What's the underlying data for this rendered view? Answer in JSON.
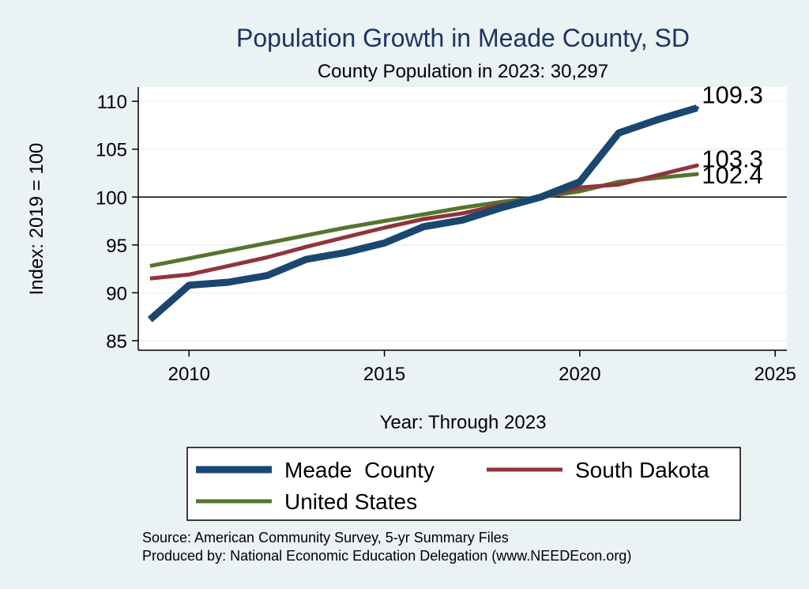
{
  "chart_data": {
    "type": "line",
    "title": "Population Growth in Meade County, SD",
    "subtitle": "County Population in 2023: 30,297",
    "xlabel": "Year: Through 2023",
    "ylabel": "Index: 2019 = 100",
    "xlim": [
      2008.7,
      2025.3
    ],
    "ylim": [
      84,
      111.5
    ],
    "x_ticks": [
      2010,
      2015,
      2020,
      2025
    ],
    "y_ticks": [
      85,
      90,
      95,
      100,
      105,
      110
    ],
    "reference_line": 100,
    "grid": true,
    "legend_position": "bottom",
    "x": [
      2009,
      2010,
      2011,
      2012,
      2013,
      2014,
      2015,
      2016,
      2017,
      2018,
      2019,
      2020,
      2021,
      2022,
      2023
    ],
    "series": [
      {
        "name": "Meade  County",
        "color": "#1a476f",
        "values": [
          87.2,
          90.8,
          91.1,
          91.8,
          93.5,
          94.2,
          95.2,
          96.9,
          97.6,
          98.9,
          100.0,
          101.6,
          106.7,
          108.1,
          109.3
        ],
        "end_label": "109.3"
      },
      {
        "name": "South Dakota",
        "color": "#90353b",
        "values": [
          91.5,
          91.9,
          92.8,
          93.7,
          94.8,
          95.8,
          96.8,
          97.7,
          98.3,
          99.2,
          100.0,
          101.0,
          101.3,
          102.3,
          103.3
        ],
        "end_label": "103.3"
      },
      {
        "name": "United States",
        "color": "#55752f",
        "values": [
          92.8,
          93.6,
          94.4,
          95.2,
          96.0,
          96.8,
          97.5,
          98.2,
          98.9,
          99.5,
          100.0,
          100.6,
          101.6,
          102.0,
          102.4
        ],
        "end_label": "102.4"
      }
    ],
    "source": "Source: American Community Survey, 5-yr Summary Files",
    "producer": "Produced by: National Economic Education Delegation (www.NEEDEcon.org)"
  }
}
